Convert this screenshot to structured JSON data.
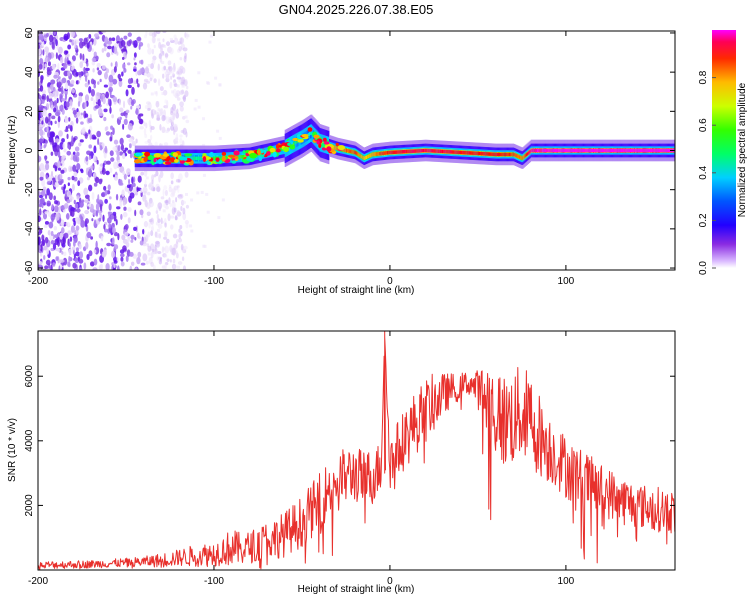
{
  "figure": {
    "title": "GN04.2025.226.07.38.E05"
  },
  "colors": {
    "snr_line": "#e8302c",
    "background": "#ffffff",
    "axis": "#000000",
    "colormap": [
      "#ffffff",
      "#dcc6f7",
      "#a070f0",
      "#6a1ee0",
      "#4c00ff",
      "#0033ff",
      "#0090ff",
      "#00e5ff",
      "#00ff80",
      "#33ff00",
      "#c6ff00",
      "#ffd000",
      "#ff6a00",
      "#ff0000",
      "#ff0066",
      "#ff00ff"
    ]
  },
  "chart_data": [
    {
      "type": "heatmap",
      "xlabel": "Height of straight line (km)",
      "ylabel": "Frequency (Hz)",
      "xlim": [
        -200,
        162
      ],
      "ylim": [
        -61,
        61
      ],
      "xticks": [
        -200,
        -100,
        0,
        100
      ],
      "yticks": [
        -60,
        -40,
        -20,
        0,
        20,
        40,
        60
      ],
      "xtick_labels": [
        "-200",
        "-100",
        "0",
        "100"
      ],
      "ytick_labels": [
        "-60",
        "-40",
        "-20",
        "0",
        "20",
        "40",
        "60"
      ],
      "grid": false,
      "noise_region_x": [
        -200,
        -140
      ],
      "signal_band": {
        "x": [
          -145,
          -120,
          -100,
          -80,
          -60,
          -50,
          -45,
          -40,
          -30,
          -20,
          -15,
          -10,
          0,
          20,
          40,
          60,
          70,
          75,
          80,
          100,
          120,
          140,
          162
        ],
        "center_freq": [
          -4,
          -4,
          -4,
          -3,
          1,
          6,
          9,
          4,
          1,
          -1,
          -4,
          -2,
          -1,
          0,
          -1,
          -2,
          -2,
          -4,
          0,
          0,
          0,
          0,
          0
        ],
        "amplitude": [
          0.3,
          0.45,
          0.55,
          0.6,
          0.55,
          0.5,
          0.45,
          0.6,
          0.75,
          0.8,
          0.7,
          0.75,
          0.85,
          0.9,
          0.85,
          0.85,
          0.8,
          0.75,
          0.95,
          1.0,
          1.0,
          1.0,
          1.0
        ]
      },
      "colorbar": {
        "label": "Normalized spectral amplitude",
        "range": [
          0,
          1
        ],
        "ticks": [
          0.0,
          0.2,
          0.4,
          0.6,
          0.8
        ],
        "tick_labels": [
          "0.0",
          "0.2",
          "0.4",
          "0.6",
          "0.8"
        ]
      }
    },
    {
      "type": "line",
      "xlabel": "Height of straight line (km)",
      "ylabel": "SNR (10 * v/v)",
      "xlim": [
        -200,
        162
      ],
      "ylim": [
        0,
        7400
      ],
      "xticks": [
        -200,
        -100,
        0,
        100
      ],
      "yticks": [
        2000,
        4000,
        6000
      ],
      "xtick_labels": [
        "-200",
        "-100",
        "0",
        "100"
      ],
      "ytick_labels": [
        "2000",
        "4000",
        "6000"
      ],
      "grid": false,
      "series": [
        {
          "x": [
            -200,
            -190,
            -180,
            -170,
            -160,
            -150,
            -140,
            -130,
            -120,
            -110,
            -100,
            -95,
            -90,
            -85,
            -80,
            -75,
            -70,
            -65,
            -60,
            -55,
            -50,
            -45,
            -40,
            -35,
            -30,
            -25,
            -20,
            -15,
            -10,
            -5,
            -3,
            0,
            5,
            10,
            15,
            20,
            25,
            30,
            35,
            40,
            45,
            50,
            55,
            60,
            65,
            70,
            75,
            80,
            85,
            90,
            95,
            100,
            110,
            120,
            130,
            140,
            150,
            162
          ],
          "values": [
            150,
            160,
            170,
            180,
            200,
            230,
            260,
            300,
            380,
            450,
            500,
            600,
            700,
            650,
            700,
            800,
            900,
            1000,
            1100,
            1300,
            1500,
            1800,
            2100,
            2500,
            2800,
            2900,
            3000,
            2800,
            2900,
            3200,
            7300,
            3300,
            3800,
            4200,
            4600,
            4900,
            5200,
            5400,
            5600,
            5700,
            5800,
            5600,
            5300,
            4900,
            4600,
            4700,
            4900,
            4600,
            4200,
            3800,
            3500,
            3200,
            2800,
            2500,
            2200,
            2000,
            1900,
            1800
          ],
          "amplitude": [
            120,
            120,
            120,
            120,
            130,
            140,
            160,
            220,
            260,
            350,
            400,
            450,
            600,
            500,
            500,
            550,
            600,
            650,
            700,
            750,
            800,
            850,
            900,
            900,
            900,
            900,
            900,
            900,
            900,
            800,
            0,
            800,
            900,
            1000,
            1000,
            1000,
            900,
            700,
            500,
            400,
            400,
            600,
            1200,
            1500,
            1500,
            1500,
            1500,
            1500,
            1300,
            1100,
            1000,
            1000,
            900,
            800,
            800,
            700,
            700,
            700
          ]
        }
      ]
    }
  ]
}
